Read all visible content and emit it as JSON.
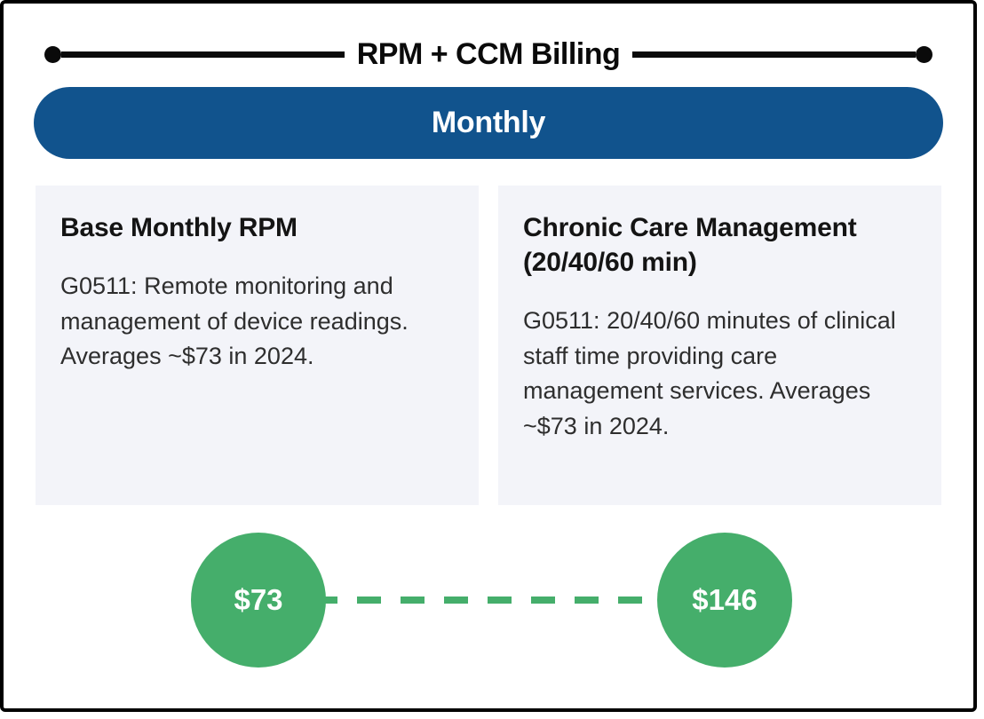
{
  "header": {
    "title": "RPM + CCM Billing"
  },
  "banner": {
    "label": "Monthly"
  },
  "cards": [
    {
      "heading": "Base Monthly RPM",
      "body": "G0511: Remote monitoring and management of device readings. Averages ~$73 in 2024."
    },
    {
      "heading": "Chronic Care Management (20/40/60 min)",
      "body": "G0511: 20/40/60 minutes of clinical staff time providing care management services. Averages ~$73 in 2024."
    }
  ],
  "prices": {
    "base": "$73",
    "combined": "$146"
  },
  "colors": {
    "accent-blue": "#11538D",
    "accent-green": "#45AE6B",
    "card-bg": "#F3F4F9",
    "line-black": "#0A0A0A"
  }
}
